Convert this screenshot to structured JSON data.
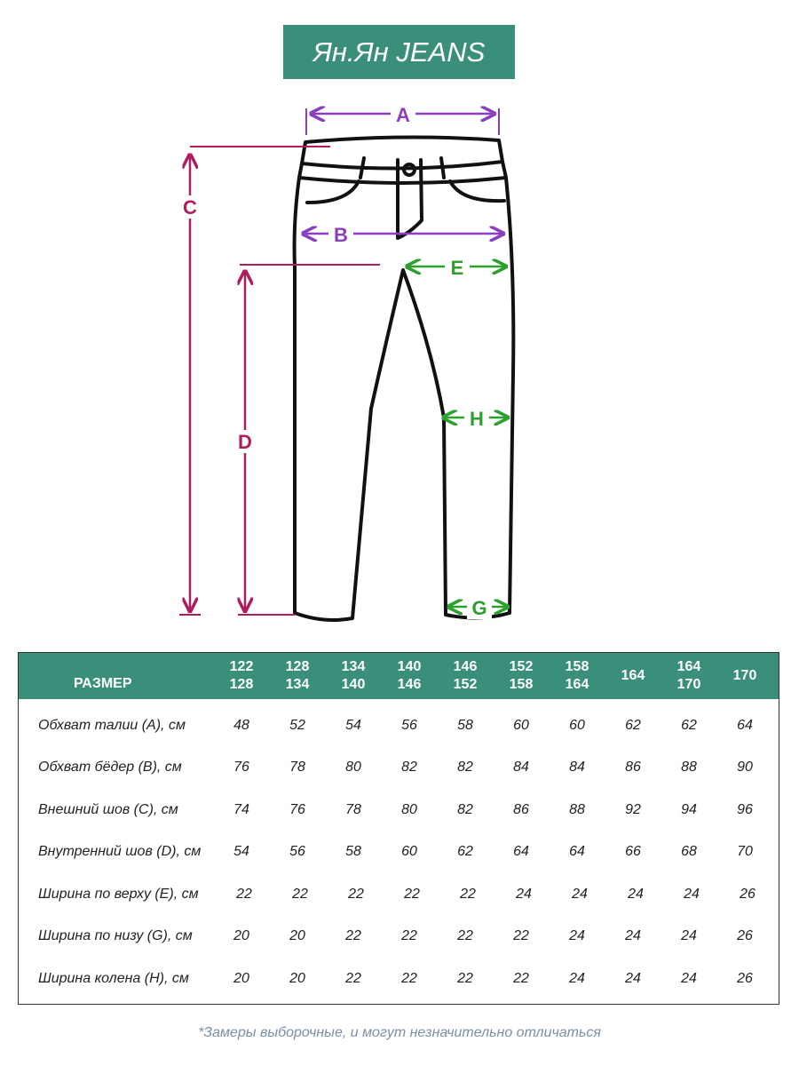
{
  "brand": {
    "title": "Ян.Ян JEANS",
    "color": "#3a8f7a"
  },
  "diagram": {
    "labels": {
      "A": "A",
      "B": "B",
      "C": "C",
      "D": "D",
      "E": "E",
      "G": "G",
      "H": "H"
    },
    "colors": {
      "A": "#8b3fc0",
      "B": "#8b3fc0",
      "C": "#b01c5e",
      "D": "#b01c5e",
      "E": "#2ca02c",
      "G": "#2ca02c",
      "H": "#2ca02c",
      "outline": "#111111"
    }
  },
  "table": {
    "header_label": "РАЗМЕР",
    "sizes": [
      {
        "line1": "122",
        "line2": "128"
      },
      {
        "line1": "128",
        "line2": "134"
      },
      {
        "line1": "134",
        "line2": "140"
      },
      {
        "line1": "140",
        "line2": "146"
      },
      {
        "line1": "146",
        "line2": "152"
      },
      {
        "line1": "152",
        "line2": "158"
      },
      {
        "line1": "158",
        "line2": "164"
      },
      {
        "line1": "164",
        "line2": ""
      },
      {
        "line1": "164",
        "line2": "170"
      },
      {
        "line1": "170",
        "line2": ""
      }
    ],
    "rows": [
      {
        "label": "Обхват талии (А), см",
        "values": [
          "48",
          "52",
          "54",
          "56",
          "58",
          "60",
          "60",
          "62",
          "62",
          "64"
        ]
      },
      {
        "label": "Обхват бёдер (В), см",
        "values": [
          "76",
          "78",
          "80",
          "82",
          "82",
          "84",
          "84",
          "86",
          "88",
          "90"
        ]
      },
      {
        "label": "Внешний шов (С), см",
        "values": [
          "74",
          "76",
          "78",
          "80",
          "82",
          "86",
          "88",
          "92",
          "94",
          "96"
        ]
      },
      {
        "label": "Внутренний шов (D), см",
        "values": [
          "54",
          "56",
          "58",
          "60",
          "62",
          "64",
          "64",
          "66",
          "68",
          "70"
        ]
      },
      {
        "label": "Ширина по верху (Е), см",
        "values": [
          "22",
          "22",
          "22",
          "22",
          "22",
          "24",
          "24",
          "24",
          "24",
          "26"
        ]
      },
      {
        "label": "Ширина по низу (G), см",
        "values": [
          "20",
          "20",
          "22",
          "22",
          "22",
          "22",
          "24",
          "24",
          "24",
          "26"
        ]
      },
      {
        "label": "Ширина колена (Н), см",
        "values": [
          "20",
          "20",
          "22",
          "22",
          "22",
          "22",
          "24",
          "24",
          "24",
          "26"
        ]
      }
    ]
  },
  "footnote": "*Замеры выборочные, и могут незначительно отличаться"
}
